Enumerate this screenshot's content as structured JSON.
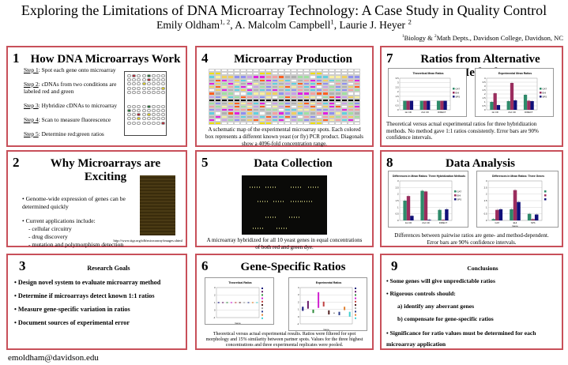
{
  "header": {
    "title": "Exploring the Limitations of DNA Microarray Technology: A Case Study in Quality Control",
    "authors": [
      {
        "name": "Emily Oldham",
        "sup": "1, 2"
      },
      {
        "name": "A. Malcolm Campbell",
        "sup": "1"
      },
      {
        "name": "Laurie J. Heyer",
        "sup": "2"
      }
    ],
    "affiliation": {
      "sup1": "1",
      "text1": "Biology & ",
      "sup2": "2",
      "text2": "Math Depts., Davidson College, Davidson, NC"
    }
  },
  "panels": {
    "p1": {
      "num": "1",
      "title": "How DNA Microarrays Work",
      "steps": [
        {
          "label": "Step 1",
          "text": ": Spot each gene onto microarray"
        },
        {
          "label": "Step 2",
          "text": ": cDNAs from two conditions are labeled red and green"
        },
        {
          "label": "Step 3",
          "text": ": Hybridize cDNAs to microarray"
        },
        {
          "label": "Step 4",
          "text": ": Scan to measure fluorescence"
        },
        {
          "label": "Step 5",
          "text": ": Determine red:green ratios"
        }
      ]
    },
    "p2": {
      "num": "2",
      "title": "Why Microarrays are Exciting",
      "bullets": [
        "Genome-wide expression of genes can be determined quickly",
        "Current applications include:"
      ],
      "subitems": [
        "- cellular circuitry",
        "- drug discovery",
        "- mutation and polymorphism detection"
      ],
      "url": "http://www.tigr.org/tdb/microarray/images.shtml"
    },
    "p3": {
      "num": "3",
      "title": "Research Goals",
      "bullets": [
        "• Design novel system to evaluate microarray method",
        "• Determine if microarrays detect known 1:1 ratios",
        "• Measure gene-specific variation in ratios",
        "• Document sources of experimental error"
      ]
    },
    "p4": {
      "num": "4",
      "title": "Microarray Production",
      "caption": "A schematic map of the experimental microarray spots.  Each colored box represents a different known yeast (or fly) PCR product.  Diagonals show a 4096-fold concentration range."
    },
    "p5": {
      "num": "5",
      "title": "Data Collection",
      "caption": "A microarray hybridized for all 10 yeast genes in equal concentrations of both red and green dye."
    },
    "p6": {
      "num": "6",
      "title": "Gene-Specific Ratios",
      "caption": "Theoretical versus actual experimental results.  Ratios were filtered for spot morphology and 15% similarity between partner spots.  Values for the three highest concentrations and three experimental replicates were pooled."
    },
    "p7": {
      "num": "7",
      "title": "Ratios from Alternative Methods",
      "caption": "Theoretical versus actual experimental ratios for three hybridization methods.  No method gave 1:1 ratios consistently.  Error bars are 90% confidence intervals."
    },
    "p8": {
      "num": "8",
      "title": "Data Analysis",
      "caption": "Differences between pairwise ratios are gene- and method-dependent. Error bars are 90% confidence intervals."
    },
    "p9": {
      "num": "9",
      "title": "Conclusions",
      "bullets": [
        "• Some genes will give unpredictable ratios",
        "• Rigorous controls should:",
        "a) identify any aberrant genes",
        "b) compensate for gene-specific ratios",
        "• Significance for ratio values must be determined for each microarray application"
      ]
    }
  },
  "footer": {
    "email": "emoldham@davidson.edu"
  },
  "colors": {
    "border": "#c8505a",
    "green": "#2e8b6a",
    "maroon": "#9b2d5e",
    "navy": "#10107a"
  },
  "chart_data": [
    {
      "id": "c7a",
      "type": "bar",
      "title": "Theoretical Mean Ratios",
      "categories": [
        "1st CD",
        "2nd CD",
        "DIRECT"
      ],
      "ylim": [
        0,
        3.5
      ],
      "yticks": [
        0,
        0.5,
        1,
        1.5,
        2,
        2.5,
        3,
        3.5
      ],
      "legend": "right",
      "series": [
        {
          "name": "GAT",
          "values": [
            1,
            1,
            1
          ]
        },
        {
          "name": "EHI",
          "values": [
            1,
            1,
            1
          ]
        },
        {
          "name": "SPS",
          "values": [
            1,
            1,
            1
          ]
        }
      ]
    },
    {
      "id": "c7b",
      "type": "bar",
      "title": "Experimental Mean Ratios",
      "categories": [
        "1st CD",
        "2nd CD",
        "DIRECT"
      ],
      "ylim": [
        0,
        4
      ],
      "yticks": [
        0,
        0.5,
        1,
        1.5,
        2,
        2.5,
        3,
        3.5,
        4
      ],
      "legend": "right",
      "series": [
        {
          "name": "GAT",
          "values": [
            1,
            1.1,
            1.9
          ]
        },
        {
          "name": "EHI",
          "values": [
            2.1,
            3.4,
            1.15
          ]
        },
        {
          "name": "SPS",
          "values": [
            0.6,
            1.2,
            1.1
          ]
        }
      ]
    },
    {
      "id": "c8a",
      "type": "bar",
      "title": "Differences in Mean Ratios: Three Hybridization Methods",
      "categories": [
        "1st CD",
        "2nd CD",
        "DIRECT"
      ],
      "ylim": [
        0,
        3
      ],
      "yticks": [
        0,
        0.5,
        1,
        1.5,
        2,
        2.5,
        3
      ],
      "legend": "right",
      "series": [
        {
          "name": "GAT",
          "values": [
            1.5,
            2.25,
            0.8
          ]
        },
        {
          "name": "EHI",
          "values": [
            1.85,
            2.2,
            0.05
          ]
        },
        {
          "name": "SPS",
          "values": [
            0.35,
            0.05,
            0.85
          ]
        }
      ]
    },
    {
      "id": "c8b",
      "type": "bar",
      "title": "Differences in Mean Ratios: Three Genes",
      "xlabel": "Gene",
      "categories": [
        "GAT",
        "EHI",
        "SPS"
      ],
      "ylim": [
        0,
        3
      ],
      "yticks": [
        0,
        0.5,
        1,
        1.5,
        2,
        2.5,
        3
      ],
      "legend": "right",
      "series": [
        {
          "name": "",
          "values": [
            0.1,
            0.85,
            0.5
          ]
        },
        {
          "name": "",
          "values": [
            0.8,
            2.3,
            0.1
          ]
        },
        {
          "name": "",
          "values": [
            0.85,
            1.4,
            0.45
          ]
        }
      ]
    },
    {
      "id": "c6a",
      "type": "scatter",
      "title": "Theoretical Ratios",
      "xlabel": "Gene",
      "ylim": [
        -1,
        3
      ],
      "ranges": [
        [
          1,
          1
        ],
        [
          1,
          1
        ],
        [
          1,
          1
        ],
        [
          1,
          1
        ],
        [
          1,
          1
        ],
        [
          1,
          1
        ],
        [
          1,
          1
        ],
        [
          1,
          1
        ],
        [
          1,
          1
        ],
        [
          1,
          1
        ]
      ]
    },
    {
      "id": "c6b",
      "type": "scatter",
      "title": "Experimental Ratios",
      "xlabel": "Gene",
      "ylim": [
        -1,
        4
      ],
      "ranges": [
        [
          0.8,
          1.3
        ],
        [
          1.1,
          2.1
        ],
        [
          0.5,
          0.9
        ],
        [
          1.2,
          3.3
        ],
        [
          1.4,
          2.0
        ],
        [
          0.3,
          0.8
        ],
        [
          0.4,
          0.5
        ],
        [
          0.2,
          0.6
        ],
        [
          0.9,
          1.3
        ],
        [
          0,
          0.6
        ]
      ]
    }
  ]
}
